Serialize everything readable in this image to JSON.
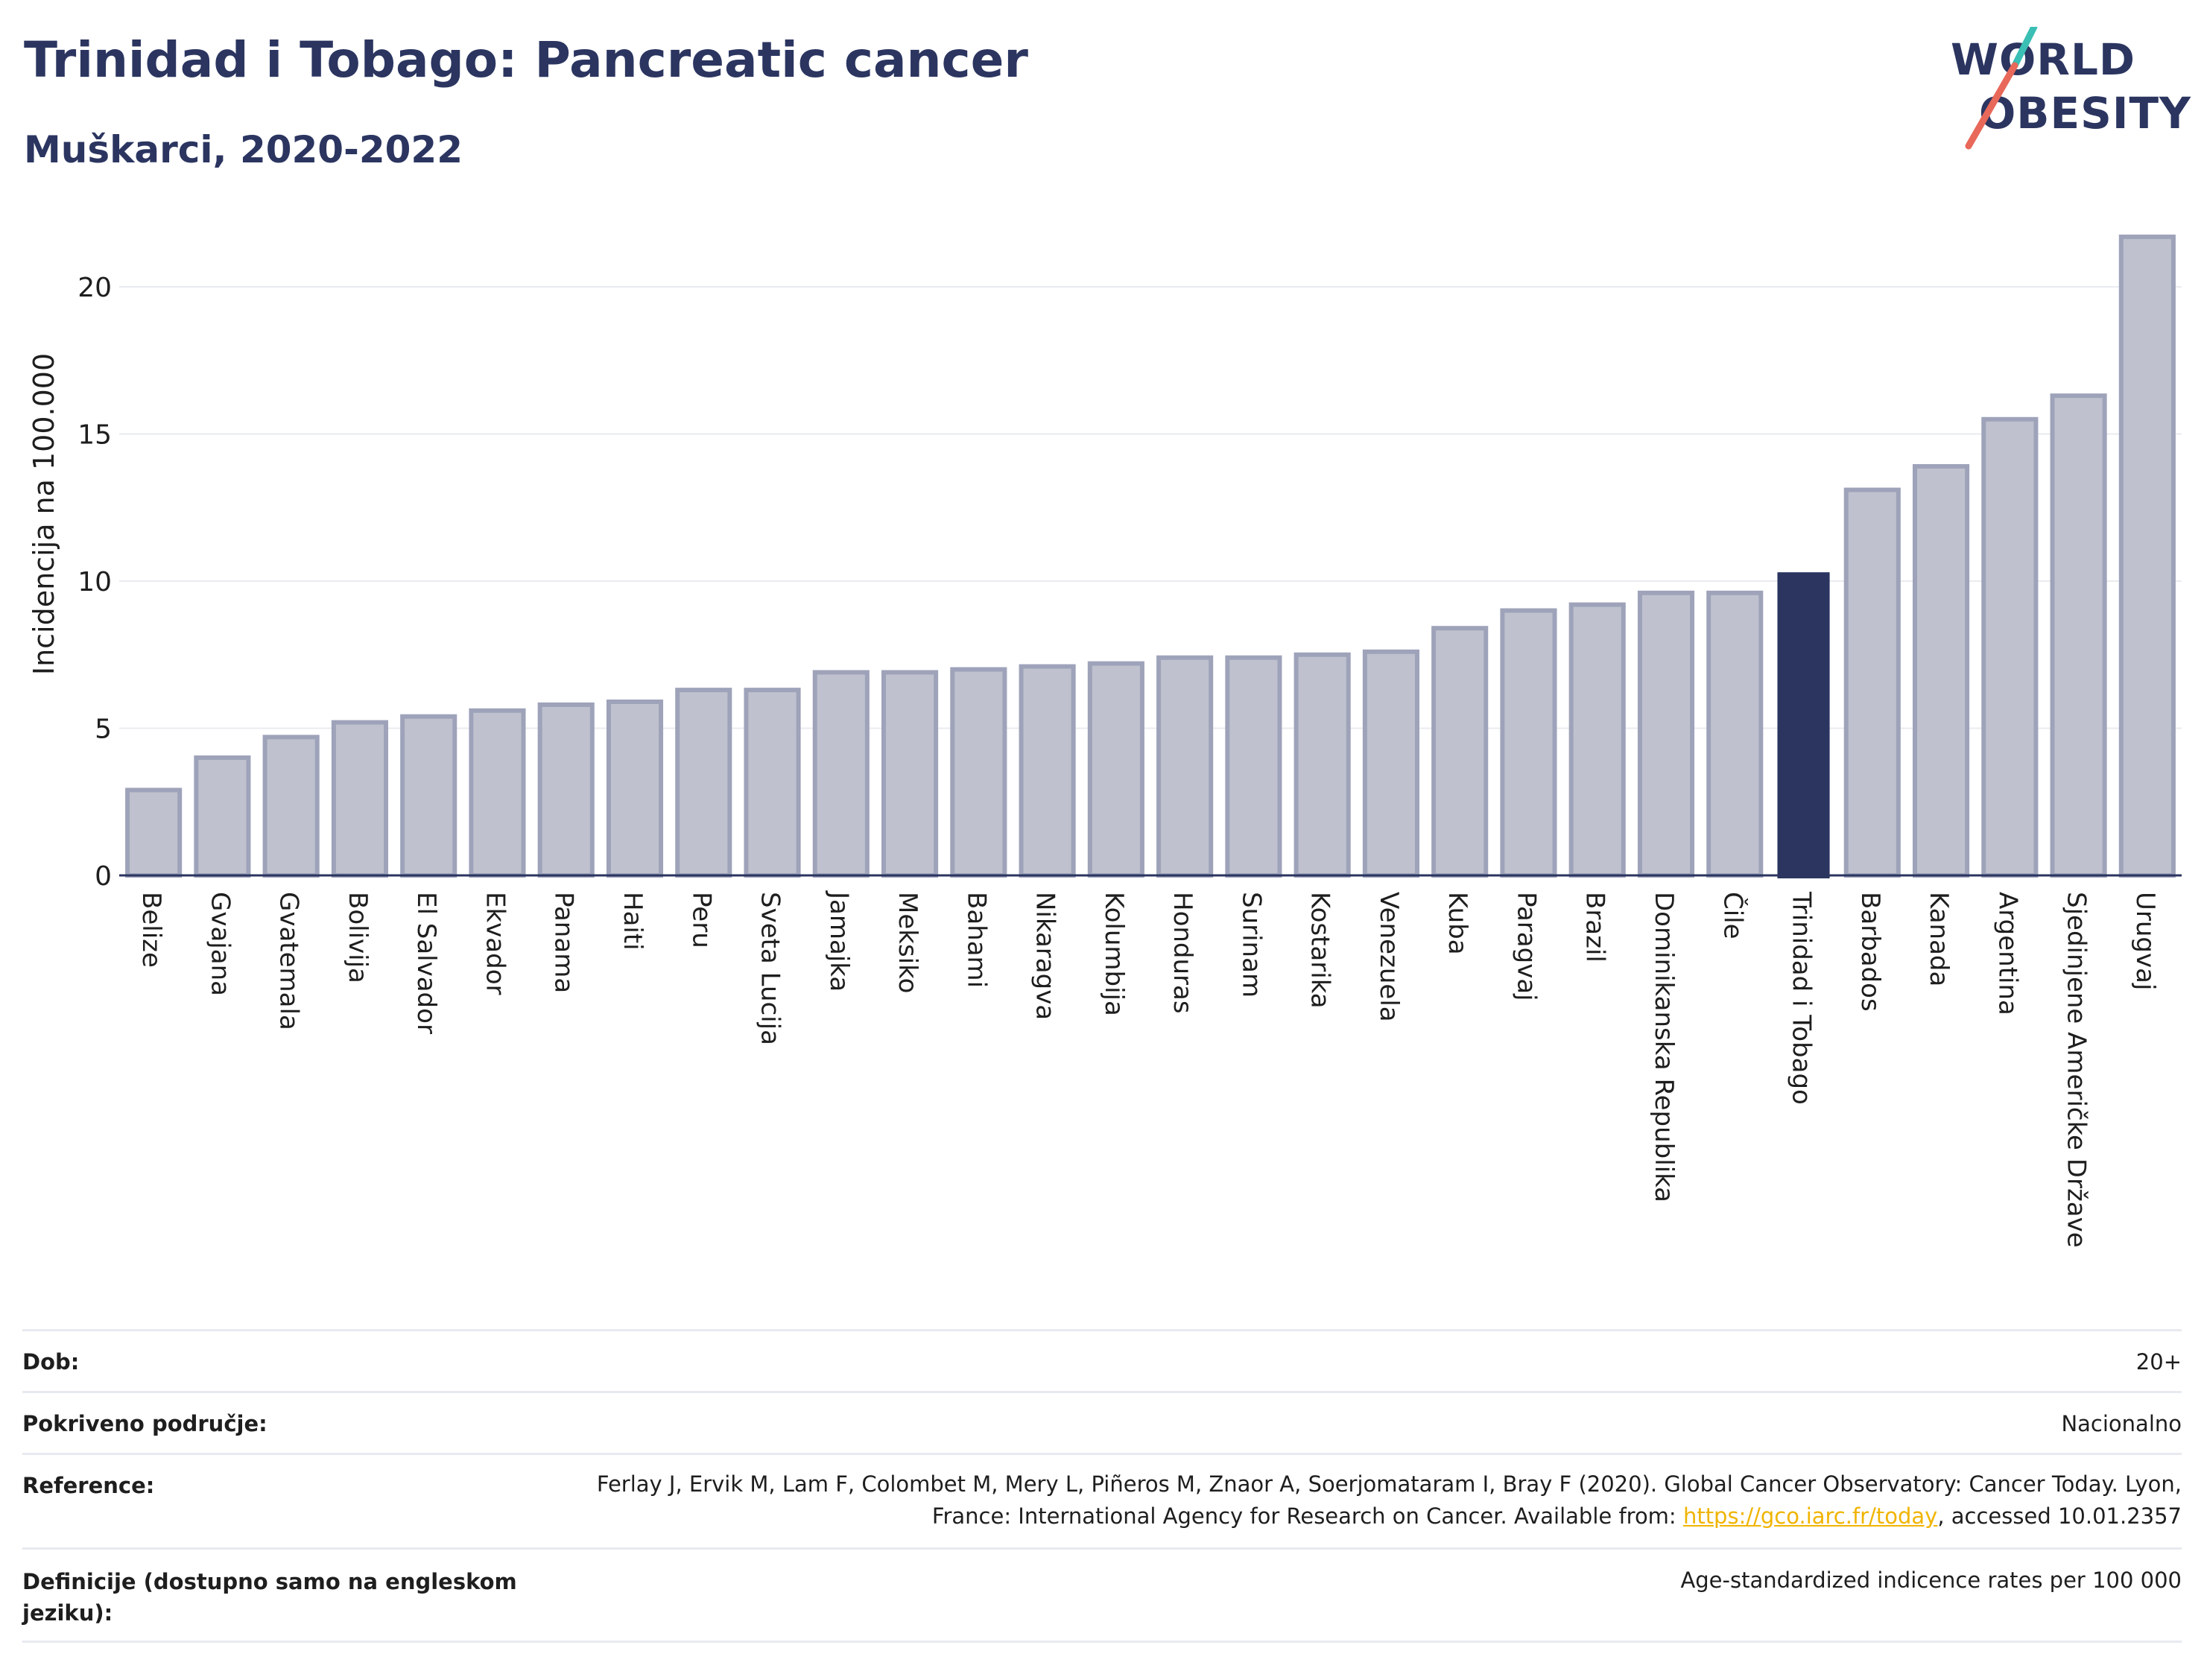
{
  "header": {
    "title": "Trinidad i Tobago: Pancreatic cancer",
    "subtitle": "Muškarci, 2020-2022"
  },
  "logo": {
    "line1": "WORLD",
    "line2": "OBESITY",
    "accent_colors": [
      "#3bbfb5",
      "#e8685a"
    ]
  },
  "colors": {
    "bar": "#bfc2ce",
    "bar_border": "#9ea3ba",
    "highlight": "#2b3560",
    "grid": "#e9ebf0",
    "axis": "#2b3560"
  },
  "chart_data": {
    "type": "bar",
    "ylabel": "Incidencija na 100.000",
    "ylim": [
      0,
      22
    ],
    "yticks": [
      0,
      5,
      10,
      15,
      20
    ],
    "grid": true,
    "highlight": "Trinidad i Tobago",
    "categories": [
      "Belize",
      "Gvajana",
      "Gvatemala",
      "Bolivija",
      "El Salvador",
      "Ekvador",
      "Panama",
      "Haiti",
      "Peru",
      "Sveta Lucija",
      "Jamajka",
      "Meksiko",
      "Bahami",
      "Nikaragva",
      "Kolumbija",
      "Honduras",
      "Surinam",
      "Kostarika",
      "Venezuela",
      "Kuba",
      "Paragvaj",
      "Brazil",
      "Dominikanska Republika",
      "Čile",
      "Trinidad i Tobago",
      "Barbados",
      "Kanada",
      "Argentina",
      "Sjedinjene Američke Države",
      "Urugvaj"
    ],
    "values": [
      2.9,
      4.0,
      4.7,
      5.2,
      5.4,
      5.6,
      5.8,
      5.9,
      6.3,
      6.3,
      6.9,
      6.9,
      7.0,
      7.1,
      7.2,
      7.4,
      7.4,
      7.5,
      7.6,
      8.4,
      9.0,
      9.2,
      9.6,
      9.6,
      10.3,
      13.1,
      13.9,
      15.5,
      16.3,
      21.7
    ]
  },
  "footer": {
    "rows": [
      {
        "label": "Dob:",
        "value": "20+"
      },
      {
        "label": "Pokriveno područje:",
        "value": "Nacionalno"
      },
      {
        "label": "Reference:",
        "value_pre": "Ferlay J, Ervik M, Lam F, Colombet M, Mery L, Piñeros M, Znaor A, Soerjomataram I, Bray F (2020). Global Cancer Observatory: Cancer Today. Lyon, France: International Agency for Research on Cancer. Available from: ",
        "link": "https://gco.iarc.fr/today",
        "value_post": ", accessed 10.01.2357"
      },
      {
        "label": "Definicije (dostupno samo na engleskom jeziku):",
        "value": "Age-standardized indicence rates per 100 000"
      }
    ]
  }
}
